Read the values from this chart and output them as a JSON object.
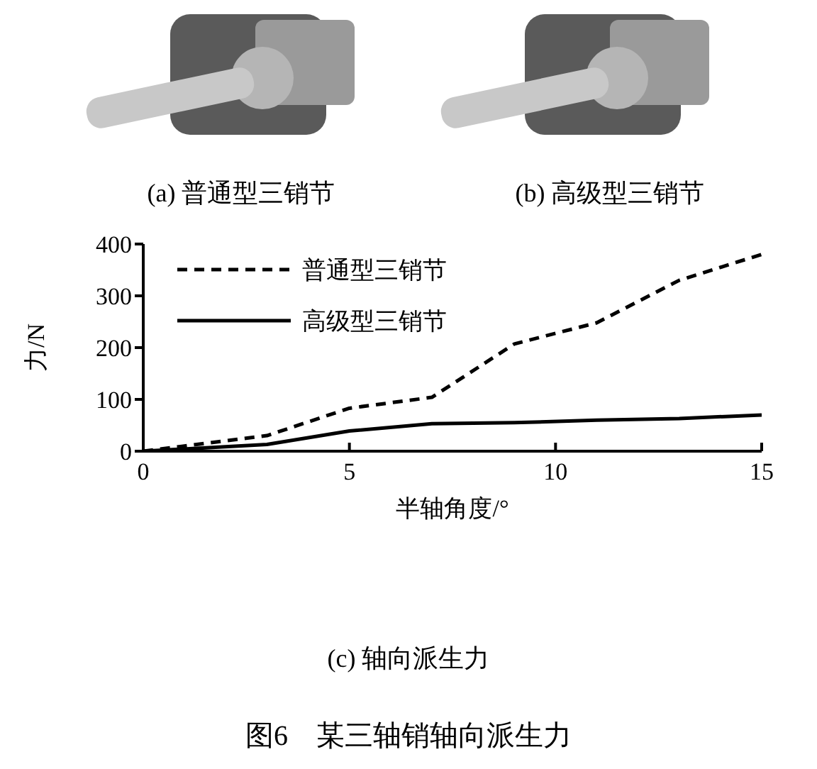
{
  "chart_data": {
    "type": "line",
    "title": "图6　某三轴销轴向派生力",
    "subtitle": "(c) 轴向派生力",
    "xlabel": "半轴角度/°",
    "ylabel": "力/N",
    "annotations": [
      "(a) 普通型三销节",
      "(b) 高级型三销节"
    ],
    "x": [
      0,
      3,
      5,
      7,
      9,
      11,
      13,
      15
    ],
    "series": [
      {
        "name": "普通型三销节",
        "color": "#000000",
        "line_style": "dashed",
        "values": [
          0,
          30,
          83,
          104,
          207,
          248,
          330,
          380
        ]
      },
      {
        "name": "高级型三销节",
        "color": "#000000",
        "line_style": "solid",
        "values": [
          0,
          13,
          39,
          53,
          55,
          60,
          63,
          70
        ]
      }
    ],
    "xlim": [
      0,
      15
    ],
    "xticks": [
      0,
      5,
      10,
      15
    ],
    "ylim": [
      0,
      400
    ],
    "yticks": [
      0,
      100,
      200,
      300,
      400
    ],
    "grid": false,
    "legend": "top left",
    "marker": "none"
  }
}
